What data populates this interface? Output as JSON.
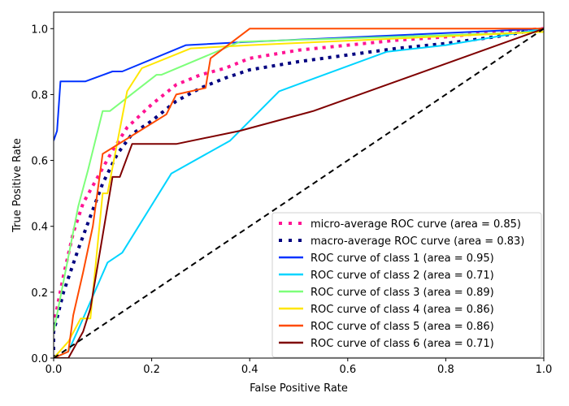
{
  "chart_data": {
    "type": "line",
    "title": "",
    "xlabel": "False Positive Rate",
    "ylabel": "True Positive Rate",
    "xlim": [
      0.0,
      1.0
    ],
    "ylim": [
      0.0,
      1.05
    ],
    "xticks": [
      "0.0",
      "0.2",
      "0.4",
      "0.6",
      "0.8",
      "1.0"
    ],
    "yticks": [
      "0.0",
      "0.2",
      "0.4",
      "0.6",
      "0.8",
      "1.0"
    ],
    "grid": false,
    "legend_position": "lower-right",
    "series": [
      {
        "name": "micro-average ROC curve (area = 0.85)",
        "color": "#ff1493",
        "style": "dotted",
        "points": [
          [
            0,
            0
          ],
          [
            0.0,
            0.1
          ],
          [
            0.02,
            0.25
          ],
          [
            0.04,
            0.38
          ],
          [
            0.06,
            0.47
          ],
          [
            0.09,
            0.55
          ],
          [
            0.12,
            0.63
          ],
          [
            0.15,
            0.7
          ],
          [
            0.2,
            0.77
          ],
          [
            0.25,
            0.83
          ],
          [
            0.3,
            0.86
          ],
          [
            0.35,
            0.88
          ],
          [
            0.4,
            0.91
          ],
          [
            0.5,
            0.935
          ],
          [
            0.6,
            0.95
          ],
          [
            0.7,
            0.965
          ],
          [
            0.8,
            0.975
          ],
          [
            0.9,
            0.99
          ],
          [
            1.0,
            1.0
          ]
        ]
      },
      {
        "name": "macro-average ROC curve (area = 0.83)",
        "color": "#000080",
        "style": "dotted",
        "points": [
          [
            0,
            0
          ],
          [
            0.0,
            0.08
          ],
          [
            0.02,
            0.2
          ],
          [
            0.05,
            0.33
          ],
          [
            0.08,
            0.45
          ],
          [
            0.1,
            0.53
          ],
          [
            0.13,
            0.62
          ],
          [
            0.16,
            0.68
          ],
          [
            0.2,
            0.72
          ],
          [
            0.25,
            0.78
          ],
          [
            0.3,
            0.82
          ],
          [
            0.35,
            0.85
          ],
          [
            0.4,
            0.875
          ],
          [
            0.5,
            0.9
          ],
          [
            0.6,
            0.92
          ],
          [
            0.7,
            0.94
          ],
          [
            0.8,
            0.955
          ],
          [
            0.9,
            0.975
          ],
          [
            1.0,
            1.0
          ]
        ]
      },
      {
        "name": "ROC curve of class 1 (area = 0.95)",
        "color": "#0032ff",
        "style": "solid",
        "points": [
          [
            0,
            0.66
          ],
          [
            0.007,
            0.69
          ],
          [
            0.014,
            0.84
          ],
          [
            0.065,
            0.84
          ],
          [
            0.12,
            0.87
          ],
          [
            0.14,
            0.87
          ],
          [
            0.27,
            0.95
          ],
          [
            0.4,
            0.96
          ],
          [
            1.0,
            1.0
          ]
        ]
      },
      {
        "name": "ROC curve of class 2 (area = 0.71)",
        "color": "#00d4ff",
        "style": "solid",
        "points": [
          [
            0,
            0
          ],
          [
            0.03,
            0.02
          ],
          [
            0.06,
            0.12
          ],
          [
            0.11,
            0.29
          ],
          [
            0.14,
            0.32
          ],
          [
            0.24,
            0.56
          ],
          [
            0.36,
            0.66
          ],
          [
            0.46,
            0.81
          ],
          [
            0.68,
            0.93
          ],
          [
            0.8,
            0.95
          ],
          [
            1.0,
            1.0
          ]
        ]
      },
      {
        "name": "ROC curve of class 3 (area = 0.89)",
        "color": "#7dff7a",
        "style": "solid",
        "points": [
          [
            0,
            0.08
          ],
          [
            0.05,
            0.46
          ],
          [
            0.07,
            0.57
          ],
          [
            0.1,
            0.75
          ],
          [
            0.115,
            0.75
          ],
          [
            0.21,
            0.86
          ],
          [
            0.22,
            0.86
          ],
          [
            0.38,
            0.96
          ],
          [
            1.0,
            0.99
          ]
        ]
      },
      {
        "name": "ROC curve of class 4 (area = 0.86)",
        "color": "#ffe600",
        "style": "solid",
        "points": [
          [
            0,
            0
          ],
          [
            0.03,
            0.05
          ],
          [
            0.055,
            0.12
          ],
          [
            0.075,
            0.12
          ],
          [
            0.1,
            0.5
          ],
          [
            0.11,
            0.5
          ],
          [
            0.15,
            0.81
          ],
          [
            0.18,
            0.88
          ],
          [
            0.28,
            0.94
          ],
          [
            0.4,
            0.95
          ],
          [
            1.0,
            0.99
          ]
        ]
      },
      {
        "name": "ROC curve of class 5 (area = 0.86)",
        "color": "#ff4a00",
        "style": "solid",
        "points": [
          [
            0,
            0
          ],
          [
            0.03,
            0.02
          ],
          [
            0.04,
            0.13
          ],
          [
            0.06,
            0.26
          ],
          [
            0.08,
            0.4
          ],
          [
            0.1,
            0.62
          ],
          [
            0.23,
            0.74
          ],
          [
            0.25,
            0.8
          ],
          [
            0.31,
            0.82
          ],
          [
            0.32,
            0.91
          ],
          [
            0.4,
            1.0
          ],
          [
            1.0,
            1.0
          ]
        ]
      },
      {
        "name": "ROC curve of class 6 (area = 0.71)",
        "color": "#7f0000",
        "style": "solid",
        "points": [
          [
            0,
            0
          ],
          [
            0.03,
            0
          ],
          [
            0.06,
            0.08
          ],
          [
            0.075,
            0.15
          ],
          [
            0.12,
            0.55
          ],
          [
            0.135,
            0.55
          ],
          [
            0.16,
            0.65
          ],
          [
            0.25,
            0.65
          ],
          [
            0.38,
            0.69
          ],
          [
            0.53,
            0.75
          ],
          [
            1.0,
            1.0
          ]
        ]
      },
      {
        "name": "chance",
        "color": "#000000",
        "style": "dashed",
        "in_legend": false,
        "points": [
          [
            0,
            0
          ],
          [
            1,
            1
          ]
        ]
      }
    ]
  }
}
